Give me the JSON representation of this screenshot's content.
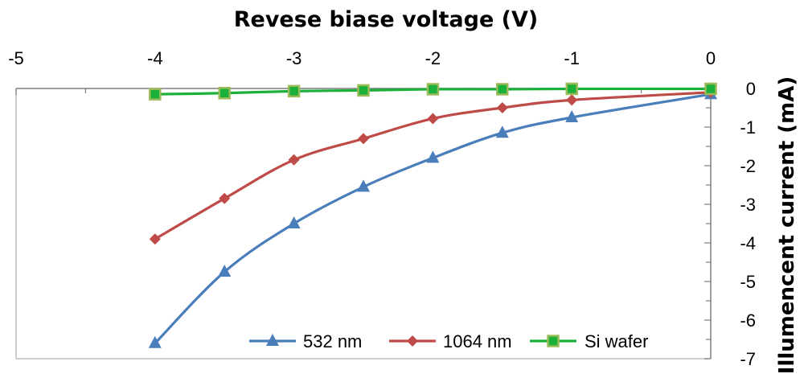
{
  "chart_data": {
    "type": "line",
    "xlabel": "Revese biase voltage (V)",
    "ylabel": "Illumencent current (mA)",
    "xlim": [
      -5,
      0
    ],
    "ylim": [
      -7,
      0
    ],
    "x_ticks": [
      "-5",
      "-4",
      "-3",
      "-2",
      "-1",
      "0"
    ],
    "y_ticks": [
      "0",
      "-1",
      "-2",
      "-3",
      "-4",
      "-5",
      "-6",
      "-7"
    ],
    "x_axis_position": "top",
    "y_axis_position": "right",
    "grid": false,
    "legend_position": "bottom-right",
    "x": [
      -4,
      -3.5,
      -3,
      -2.5,
      -2,
      -1.5,
      -1,
      0
    ],
    "series": [
      {
        "name": "532 nm",
        "color": "#4a7ebb",
        "marker": "triangle",
        "values": [
          -6.6,
          -4.75,
          -3.5,
          -2.55,
          -1.8,
          -1.15,
          -0.75,
          -0.15
        ]
      },
      {
        "name": "1064 nm",
        "color": "#be4b48",
        "marker": "diamond",
        "values": [
          -3.9,
          -2.85,
          -1.85,
          -1.3,
          -0.78,
          -0.5,
          -0.3,
          -0.1
        ]
      },
      {
        "name": "Si wafer",
        "color": "#1ab03a",
        "marker_fill": "#1ab03a",
        "marker_edge": "#9bbb59",
        "marker": "square",
        "values": [
          -0.15,
          -0.12,
          -0.07,
          -0.05,
          -0.02,
          -0.02,
          -0.01,
          -0.01
        ]
      }
    ]
  }
}
